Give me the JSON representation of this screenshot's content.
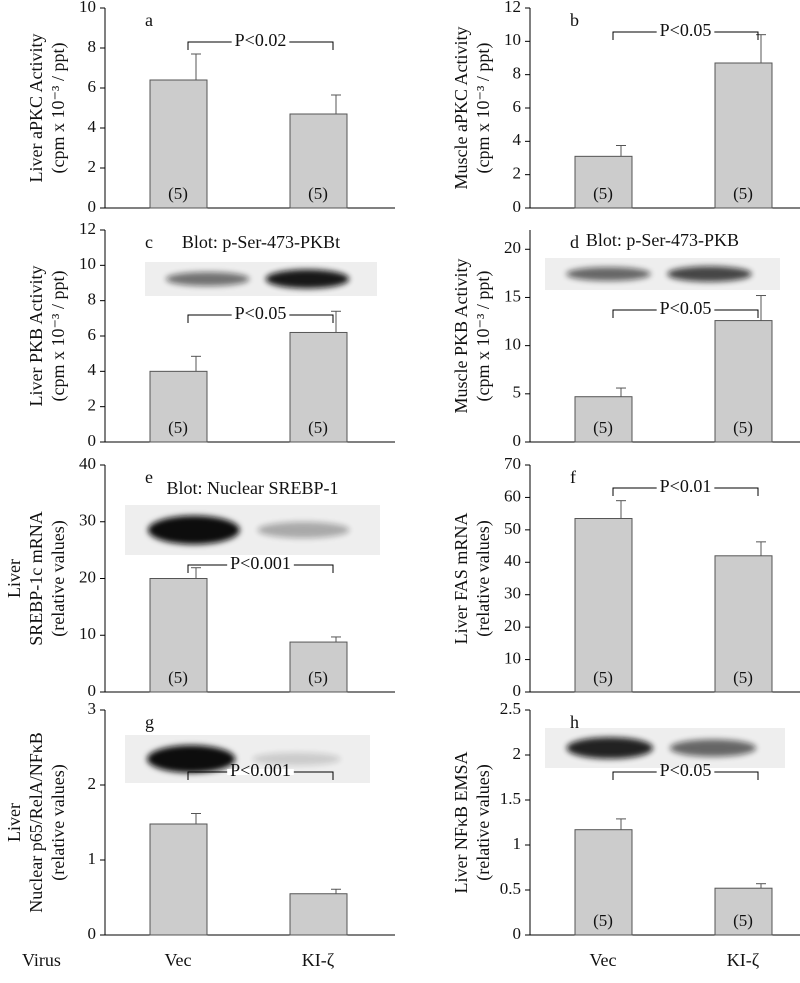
{
  "chart_data": [
    {
      "type": "bar",
      "panel": "a",
      "y_label": [
        "Liver aPKC Activity",
        "(cpm x 10⁻³ / ppt)"
      ],
      "values": [
        6.4,
        4.7
      ],
      "errors": [
        1.3,
        0.95
      ],
      "n_labels": [
        "(5)",
        "(5)"
      ],
      "annotation": "P<0.02",
      "ylim": [
        0,
        10
      ],
      "yticks": [
        0,
        2,
        4,
        6,
        8,
        10
      ],
      "color": "#cccccc"
    },
    {
      "type": "bar",
      "panel": "b",
      "y_label": [
        "Muscle aPKC Activity",
        "(cpm x 10⁻³ / ppt)"
      ],
      "values": [
        3.1,
        8.7
      ],
      "errors": [
        0.65,
        1.7
      ],
      "n_labels": [
        "(5)",
        "(5)"
      ],
      "annotation": "P<0.05",
      "ylim": [
        0,
        12
      ],
      "yticks": [
        0,
        2,
        4,
        6,
        8,
        10,
        12
      ],
      "color": "#cccccc"
    },
    {
      "type": "bar",
      "panel": "c",
      "y_label": [
        "Liver  PKB Activity",
        "(cpm x 10⁻³ / ppt)"
      ],
      "values": [
        4.0,
        6.2
      ],
      "errors": [
        0.85,
        1.2
      ],
      "n_labels": [
        "(5)",
        "(5)"
      ],
      "annotation": "P<0.05",
      "blot": "Blot: p-Ser-473-PKBt",
      "ylim": [
        0,
        12
      ],
      "yticks": [
        0,
        2,
        4,
        6,
        8,
        10,
        12
      ],
      "color": "#cccccc"
    },
    {
      "type": "bar",
      "panel": "d",
      "y_label": [
        "Muscle  PKB Activity",
        "(cpm x 10⁻³ / ppt)"
      ],
      "values": [
        4.7,
        12.6
      ],
      "errors": [
        0.9,
        2.6
      ],
      "n_labels": [
        "(5)",
        "(5)"
      ],
      "annotation": "P<0.05",
      "blot": "Blot: p-Ser-473-PKB",
      "ylim": [
        0,
        22
      ],
      "yticks": [
        0,
        5,
        10,
        15,
        20
      ],
      "color": "#cccccc"
    },
    {
      "type": "bar",
      "panel": "e",
      "y_label": [
        "Liver",
        "SREBP-1c  mRNA",
        "(relative values)"
      ],
      "values": [
        20,
        8.8
      ],
      "errors": [
        1.9,
        0.9
      ],
      "n_labels": [
        "(5)",
        "(5)"
      ],
      "annotation": "P<0.001",
      "blot": "Blot: Nuclear SREBP-1",
      "ylim": [
        0,
        40
      ],
      "yticks": [
        0,
        10,
        20,
        30,
        40
      ],
      "color": "#cccccc"
    },
    {
      "type": "bar",
      "panel": "f",
      "y_label": [
        "Liver FAS  mRNA",
        "(relative values)"
      ],
      "values": [
        53.5,
        42
      ],
      "errors": [
        5.5,
        4.3
      ],
      "n_labels": [
        "(5)",
        "(5)"
      ],
      "annotation": "P<0.01",
      "ylim": [
        0,
        70
      ],
      "yticks": [
        0,
        10,
        20,
        30,
        40,
        50,
        60,
        70
      ],
      "color": "#cccccc"
    },
    {
      "type": "bar",
      "panel": "g",
      "y_label": [
        "Liver",
        "Nuclear p65/RelA/NFκB",
        "(relative values)"
      ],
      "values": [
        1.48,
        0.55
      ],
      "errors": [
        0.14,
        0.06
      ],
      "annotation": "P<0.001",
      "ylim": [
        0,
        3
      ],
      "yticks": [
        0,
        1,
        2,
        3
      ],
      "color": "#cccccc",
      "x_label": "Virus",
      "categories": [
        "Vec",
        "KI-ζ"
      ]
    },
    {
      "type": "bar",
      "panel": "h",
      "y_label": [
        "Liver NFκB EMSA",
        "(relative values)"
      ],
      "values": [
        1.17,
        0.52
      ],
      "errors": [
        0.12,
        0.05
      ],
      "n_labels": [
        "(5)",
        "(5)"
      ],
      "annotation": "P<0.05",
      "ylim": [
        0,
        2.5
      ],
      "yticks": [
        0,
        0.5,
        1,
        1.5,
        2,
        2.5
      ],
      "color": "#cccccc",
      "categories": [
        "Vec",
        "KI-ζ"
      ]
    }
  ]
}
